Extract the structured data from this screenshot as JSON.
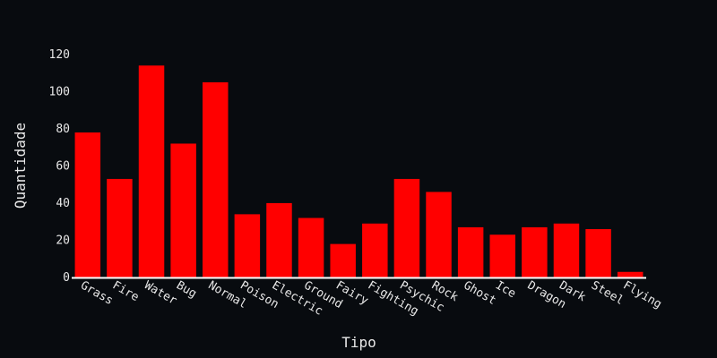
{
  "colors": {
    "background": "#080b0f",
    "bar": "#ff0000",
    "text": "#e8e8e8",
    "axis_line": "#ffffff"
  },
  "chart_data": {
    "type": "bar",
    "title": "",
    "xlabel": "Tipo",
    "ylabel": "Quantidade",
    "categories": [
      "Grass",
      "Fire",
      "Water",
      "Bug",
      "Normal",
      "Poison",
      "Electric",
      "Ground",
      "Fairy",
      "Fighting",
      "Psychic",
      "Rock",
      "Ghost",
      "Ice",
      "Dragon",
      "Dark",
      "Steel",
      "Flying"
    ],
    "values": [
      78,
      53,
      114,
      72,
      105,
      34,
      40,
      32,
      18,
      29,
      53,
      46,
      27,
      23,
      27,
      29,
      26,
      3
    ],
    "ylim": [
      0,
      130
    ],
    "yticks": [
      0,
      20,
      40,
      60,
      80,
      100,
      120
    ],
    "grid": false,
    "legend": "none"
  }
}
